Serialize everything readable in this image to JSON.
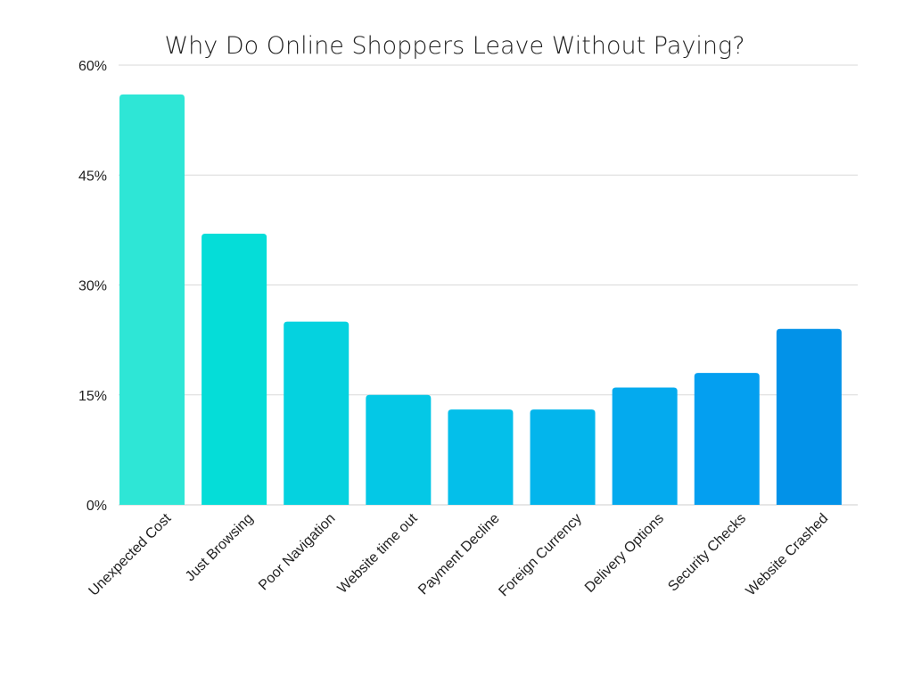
{
  "chart_data": {
    "type": "bar",
    "title": "Why Do Online Shoppers Leave Without Paying?",
    "xlabel": "",
    "ylabel": "",
    "categories": [
      "Unexpected Cost",
      "Just Browsing",
      "Poor Navigation",
      "Website time out",
      "Payment Decline",
      "Foreign Currency",
      "Delivery Options",
      "Security Checks",
      "Website Crashed"
    ],
    "values": [
      56,
      37,
      25,
      15,
      13,
      13,
      16,
      18,
      24
    ],
    "ylim": [
      0,
      60
    ],
    "yticks": [
      0,
      15,
      30,
      45,
      60
    ],
    "ytick_labels": [
      "0%",
      "15%",
      "30%",
      "45%",
      "60%"
    ],
    "grid": true,
    "legend": "none",
    "colors": [
      "#2ee6d6",
      "#05ddd8",
      "#05d2df",
      "#04c8e6",
      "#04bfea",
      "#03b5ec",
      "#04aaee",
      "#049ff0",
      "#0292e8"
    ]
  }
}
